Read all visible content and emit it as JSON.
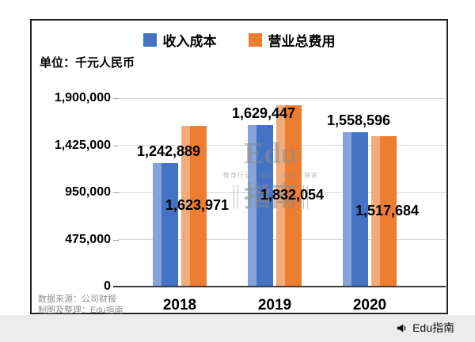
{
  "unit_label": "单位：千元人民币",
  "legend": [
    {
      "label": "收入成本",
      "color": "#4472C4"
    },
    {
      "label": "营业总费用",
      "color": "#ED7D31"
    }
  ],
  "chart_data": {
    "type": "bar",
    "title": "",
    "xlabel": "",
    "ylabel": "",
    "categories": [
      "2018",
      "2019",
      "2020"
    ],
    "series": [
      {
        "name": "收入成本",
        "color": "#4472C4",
        "values": [
          1242889,
          1629447,
          1558596
        ]
      },
      {
        "name": "营业总费用",
        "color": "#ED7D31",
        "values": [
          1623971,
          1832054,
          1517684
        ]
      }
    ],
    "value_labels": [
      [
        "1,242,889",
        "1,629,447",
        "1,558,596"
      ],
      [
        "1,623,971",
        "1,832,054",
        "1,517,684"
      ]
    ],
    "ylim": [
      0,
      1900000
    ],
    "yticks": [
      0,
      475000,
      950000,
      1425000,
      1900000
    ],
    "ytick_labels": [
      "0",
      "475,000",
      "950,000",
      "1,425,000",
      "1,900,000"
    ],
    "grid": true,
    "legend_position": "top"
  },
  "watermark": {
    "line1": "Edu",
    "tagline": "教育行业 · 前沿 · 深度 · 独家",
    "line2": "指南"
  },
  "footer": {
    "source": "数据来源：公司财报",
    "credit": "制图及整理：Edu指南"
  },
  "bottom_bar": {
    "brand": "Edu指南"
  }
}
